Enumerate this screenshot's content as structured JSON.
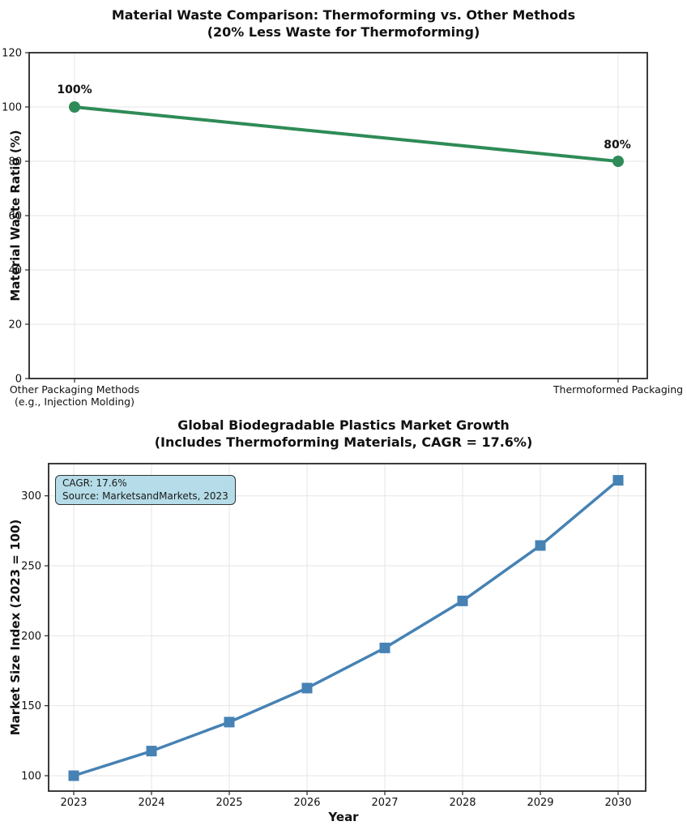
{
  "figure": {
    "background": "#ffffff"
  },
  "chart_data": [
    {
      "type": "line",
      "title": "Material Waste Comparison: Thermoforming vs. Other Methods\n(20% Less Waste for Thermoforming)",
      "xlabel": "",
      "ylabel": "Material Waste Ratio (%)",
      "categories": [
        "Other Packaging Methods\n(e.g., Injection Molding)",
        "Thermoformed Packaging"
      ],
      "values": [
        100,
        80
      ],
      "point_labels": [
        "100%",
        "80%"
      ],
      "ylim": [
        0,
        120
      ],
      "yticks": [
        0,
        20,
        40,
        60,
        80,
        100,
        120
      ],
      "grid": true,
      "legend": "none",
      "line_color": "#2e8b57",
      "marker": "circle"
    },
    {
      "type": "line",
      "title": "Global Biodegradable Plastics Market Growth\n(Includes Thermoforming Materials, CAGR = 17.6%)",
      "xlabel": "Year",
      "ylabel": "Market Size Index (2023 = 100)",
      "x": [
        2023,
        2024,
        2025,
        2026,
        2027,
        2028,
        2029,
        2030
      ],
      "values": [
        100,
        117.6,
        138.3,
        162.6,
        191.3,
        224.9,
        264.5,
        311.1
      ],
      "ylim": [
        89,
        323
      ],
      "yticks": [
        100,
        150,
        200,
        250,
        300
      ],
      "grid": true,
      "legend": "none",
      "line_color": "#4682b4",
      "marker": "square",
      "annotation": {
        "lines": [
          "CAGR: 17.6%",
          "Source: MarketsandMarkets, 2023"
        ],
        "bg_color": "#add8e6",
        "border_color": "#333333"
      }
    }
  ],
  "colors": {
    "waste_line": "#2e8b57",
    "market_line": "#4682b4",
    "grid": "#e5e5e5",
    "spine": "#262626",
    "text": "#111111"
  }
}
